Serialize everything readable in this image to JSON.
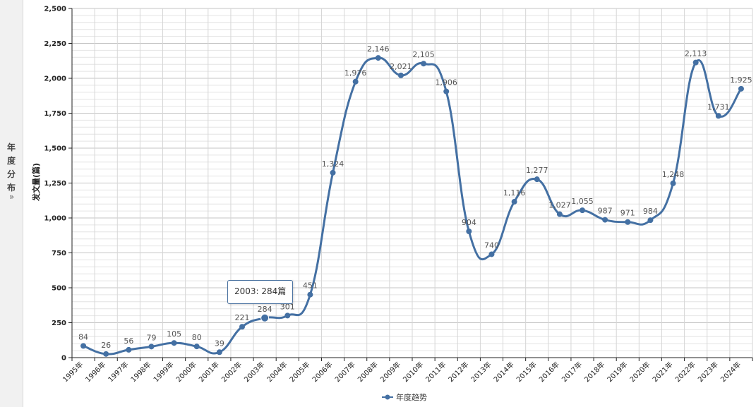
{
  "sidebar": {
    "label": "年度分布",
    "toggle": "»"
  },
  "tooltip": {
    "text": "2003: 284篇"
  },
  "chart_data": {
    "type": "line",
    "categories": [
      "1995年",
      "1996年",
      "1997年",
      "1998年",
      "1999年",
      "2000年",
      "2001年",
      "2002年",
      "2003年",
      "2004年",
      "2005年",
      "2006年",
      "2007年",
      "2008年",
      "2009年",
      "2010年",
      "2011年",
      "2012年",
      "2013年",
      "2014年",
      "2015年",
      "2016年",
      "2017年",
      "2018年",
      "2019年",
      "2020年",
      "2021年",
      "2022年",
      "2023年",
      "2024年"
    ],
    "series": [
      {
        "name": "年度趋势",
        "values": [
          84,
          26,
          56,
          79,
          105,
          80,
          39,
          221,
          284,
          301,
          451,
          1324,
          1976,
          2146,
          2021,
          2105,
          1906,
          904,
          740,
          1116,
          1277,
          1027,
          1055,
          987,
          971,
          984,
          1248,
          2113,
          1731,
          1925
        ],
        "data_labels": [
          "84",
          "26",
          "56",
          "79",
          "105",
          "80",
          "39",
          "221",
          "284",
          "301",
          "451",
          "1,324",
          "1,976",
          "2,146",
          "2,021",
          "2,105",
          "1,906",
          "904",
          "740",
          "1,116",
          "1,277",
          "1,027",
          "1,055",
          "987",
          "971",
          "984",
          "1,248",
          "2,113",
          "1,731",
          "1,925"
        ]
      }
    ],
    "ylabel": "发文量(篇)",
    "xlabel": "",
    "ylim": [
      0,
      2500
    ],
    "yticks": [
      0,
      250,
      500,
      750,
      1000,
      1250,
      1500,
      1750,
      2000,
      2250,
      2500
    ],
    "ytick_labels": [
      "0",
      "250",
      "500",
      "750",
      "1,000",
      "1,250",
      "1,500",
      "1,750",
      "2,000",
      "2,250",
      "2,500"
    ],
    "grid": true,
    "legend": "bottom-center",
    "highlight": "2003年",
    "color": "#4470a3"
  }
}
